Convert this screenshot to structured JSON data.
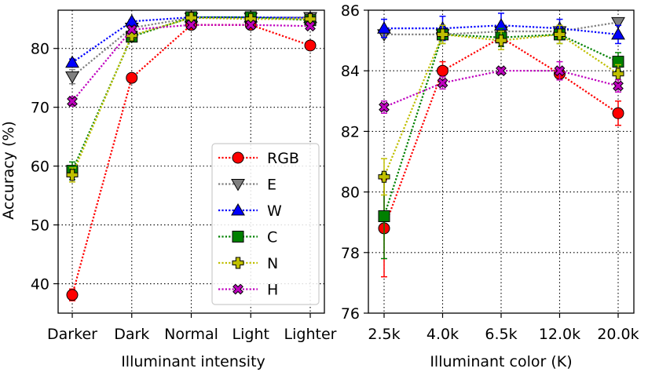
{
  "chart_data": [
    {
      "type": "line",
      "xlabel": "Illuminant intensity",
      "ylabel": "Accuracy (%)",
      "categories": [
        "Darker",
        "Dark",
        "Normal",
        "Light",
        "Lighter"
      ],
      "ylim": [
        35,
        86.5
      ],
      "yticks": [
        40,
        50,
        60,
        70,
        80
      ],
      "grid": true,
      "legend": {
        "placement": "lower-right",
        "entries": [
          "RGB",
          "E",
          "W",
          "C",
          "N",
          "H"
        ]
      },
      "series": [
        {
          "name": "RGB",
          "color": "#ff0000",
          "marker": "circle",
          "values": [
            38.1,
            75.0,
            84.0,
            84.0,
            80.5
          ],
          "errors": [
            1.0,
            0.5,
            0.3,
            0.3,
            0.4
          ]
        },
        {
          "name": "E",
          "color": "#808080",
          "marker": "triangle-down",
          "values": [
            75.2,
            83.5,
            85.2,
            85.2,
            85.3
          ],
          "errors": [
            1.2,
            0.4,
            0.3,
            0.3,
            0.3
          ]
        },
        {
          "name": "W",
          "color": "#0000ff",
          "marker": "triangle-up",
          "values": [
            77.6,
            84.6,
            85.3,
            85.3,
            85.2
          ],
          "errors": [
            0.6,
            0.3,
            0.3,
            0.3,
            0.3
          ]
        },
        {
          "name": "C",
          "color": "#008000",
          "marker": "square",
          "values": [
            59.2,
            82.0,
            85.3,
            85.3,
            84.8
          ],
          "errors": [
            1.5,
            0.5,
            0.3,
            0.3,
            0.3
          ]
        },
        {
          "name": "N",
          "color": "#bfbf00",
          "marker": "plus",
          "values": [
            58.5,
            82.2,
            85.2,
            85.0,
            85.0
          ],
          "errors": [
            1.2,
            0.5,
            0.3,
            0.3,
            0.3
          ]
        },
        {
          "name": "H",
          "color": "#bf00bf",
          "marker": "x",
          "values": [
            71.0,
            83.2,
            84.0,
            84.0,
            83.8
          ],
          "errors": [
            0.8,
            0.4,
            0.3,
            0.3,
            0.3
          ]
        }
      ]
    },
    {
      "type": "line",
      "xlabel": "Illuminant color (K)",
      "ylabel": "",
      "categories": [
        "2.5k",
        "4.0k",
        "6.5k",
        "12.0k",
        "20.0k"
      ],
      "ylim": [
        76,
        86
      ],
      "yticks": [
        76,
        78,
        80,
        82,
        84,
        86
      ],
      "grid": true,
      "series": [
        {
          "name": "RGB",
          "color": "#ff0000",
          "marker": "circle",
          "values": [
            78.8,
            84.0,
            85.1,
            83.9,
            82.6
          ],
          "errors": [
            1.6,
            0.3,
            0.3,
            0.2,
            0.4
          ]
        },
        {
          "name": "E",
          "color": "#808080",
          "marker": "triangle-down",
          "values": [
            85.2,
            85.2,
            85.3,
            85.3,
            85.6
          ],
          "errors": [
            0.1,
            0.2,
            0.2,
            0.2,
            0.1
          ]
        },
        {
          "name": "W",
          "color": "#0000ff",
          "marker": "triangle-up",
          "values": [
            85.4,
            85.4,
            85.5,
            85.4,
            85.2
          ],
          "errors": [
            0.3,
            0.4,
            0.4,
            0.3,
            0.3
          ]
        },
        {
          "name": "C",
          "color": "#008000",
          "marker": "square",
          "values": [
            79.2,
            85.2,
            85.1,
            85.2,
            84.3
          ],
          "errors": [
            1.4,
            0.3,
            0.3,
            0.3,
            0.3
          ]
        },
        {
          "name": "N",
          "color": "#bfbf00",
          "marker": "plus",
          "values": [
            80.5,
            85.2,
            85.0,
            85.2,
            83.9
          ],
          "errors": [
            0.6,
            0.3,
            0.3,
            0.3,
            0.3
          ]
        },
        {
          "name": "H",
          "color": "#bf00bf",
          "marker": "x",
          "values": [
            82.8,
            83.6,
            84.0,
            84.0,
            83.5
          ],
          "errors": [
            0.2,
            0.2,
            0.1,
            0.3,
            0.2
          ]
        }
      ]
    }
  ]
}
